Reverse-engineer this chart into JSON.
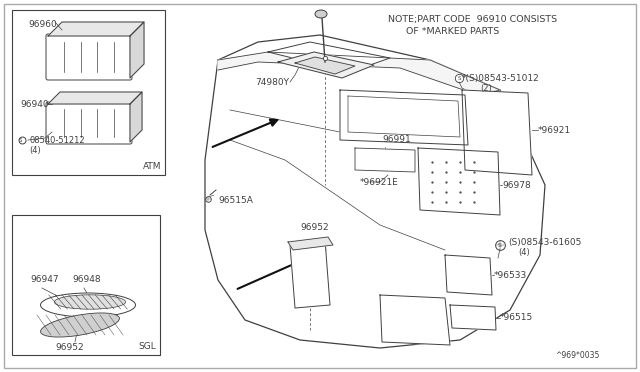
{
  "bg_color": "#ffffff",
  "lc": "#404040",
  "tc": "#404040",
  "note_text1": "NOTE;PART CODE  96910 CONSISTS",
  "note_text2": "      OF *MARKED PARTS",
  "diagram_id": "^969*0035",
  "atm_label": "ATM",
  "sgl_label": "SGL",
  "fs": 6.5
}
